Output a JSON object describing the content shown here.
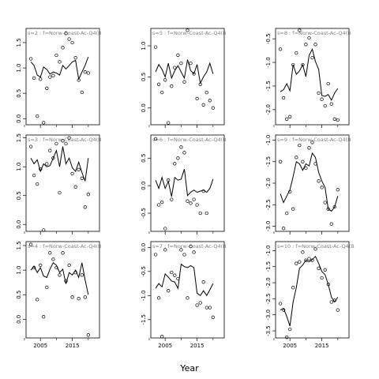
{
  "figure": {
    "x_axis_title": "Year",
    "colors": {
      "line": "#000000",
      "points": "#000000",
      "strip_text": "#808080",
      "background": "#ffffff"
    }
  },
  "chart_data": [
    {
      "type": "scatter",
      "row": 0,
      "col": 0,
      "strip_label": "s=2 : f=Norw-Coast-Ac-Q4(B",
      "xlim": [
        2000.5,
        2023.5
      ],
      "ylim": [
        -0.12,
        1.78
      ],
      "yticks": [
        0.0,
        0.5,
        1.0,
        1.5
      ],
      "ytick_labels": [
        "0.0",
        "0.5",
        "1.0",
        "1.5"
      ],
      "points": {
        "x": [
          2002,
          2003,
          2004,
          2005,
          2006,
          2007,
          2008,
          2009,
          2010,
          2011,
          2012,
          2013,
          2014,
          2015,
          2016,
          2017,
          2018,
          2019,
          2020,
          2021,
          2022
        ],
        "y": [
          1.18,
          0.8,
          0.05,
          0.78,
          -0.08,
          0.6,
          0.82,
          0.85,
          1.25,
          1.12,
          1.4,
          1.68,
          1.57,
          1.5,
          1.2,
          0.76,
          0.52,
          0.92,
          0.9,
          null,
          null
        ]
      },
      "fit": {
        "x": [
          2002,
          2003,
          2004,
          2005,
          2006,
          2007,
          2008,
          2009,
          2010,
          2011,
          2012,
          2013,
          2014,
          2015,
          2016,
          2017,
          2018,
          2019,
          2020
        ],
        "y": [
          1.12,
          1.05,
          0.86,
          0.82,
          1.02,
          0.97,
          0.88,
          0.92,
          0.9,
          0.86,
          1.05,
          0.98,
          1.05,
          1.12,
          1.15,
          0.78,
          0.92,
          1.05,
          1.22
        ]
      }
    },
    {
      "type": "scatter",
      "row": 0,
      "col": 1,
      "strip_label": "s=5 : f=Norw-Coast-Ac-Q4(B",
      "xlim": [
        2000.5,
        2023.5
      ],
      "ylim": [
        -0.27,
        1.28
      ],
      "yticks": [
        0.0,
        0.5,
        1.0
      ],
      "ytick_labels": [
        "0.0",
        "0.5",
        "1.0"
      ],
      "points": {
        "x": [
          2002,
          2003,
          2004,
          2005,
          2006,
          2007,
          2008,
          2009,
          2010,
          2011,
          2012,
          2013,
          2014,
          2015,
          2016,
          2017,
          2018,
          2019,
          2020
        ],
        "y": [
          0.98,
          0.38,
          0.25,
          0.45,
          -0.24,
          0.35,
          0.65,
          0.85,
          0.72,
          0.42,
          1.25,
          0.72,
          0.55,
          0.15,
          0.38,
          0.05,
          0.25,
          0.12,
          0.0
        ]
      },
      "fit": {
        "x": [
          2002,
          2003,
          2004,
          2005,
          2006,
          2007,
          2008,
          2009,
          2010,
          2011,
          2012,
          2013,
          2014,
          2015,
          2016,
          2017,
          2018,
          2019,
          2020
        ],
        "y": [
          0.58,
          0.7,
          0.62,
          0.5,
          0.72,
          0.48,
          0.6,
          0.68,
          0.58,
          0.48,
          0.78,
          0.6,
          0.55,
          0.7,
          0.4,
          0.5,
          0.58,
          0.72,
          0.55
        ]
      }
    },
    {
      "type": "scatter",
      "row": 0,
      "col": 2,
      "strip_label": "s=8 : f=Norw-Coast-Ac-Q4(B",
      "xlim": [
        2000.5,
        2023.5
      ],
      "ylim": [
        -2.32,
        -0.28
      ],
      "yticks": [
        -2.0,
        -1.5,
        -1.0,
        -0.5
      ],
      "ytick_labels": [
        "-2.0",
        "-1.5",
        "-1.0",
        "-0.5"
      ],
      "points": {
        "x": [
          2002,
          2003,
          2004,
          2005,
          2006,
          2007,
          2008,
          2009,
          2010,
          2011,
          2012,
          2013,
          2014,
          2015,
          2016,
          2017,
          2018,
          2019,
          2020
        ],
        "y": [
          -0.72,
          -1.75,
          -2.2,
          -2.15,
          -1.05,
          -0.8,
          -0.32,
          -1.05,
          -0.62,
          -0.48,
          -0.9,
          -0.62,
          -1.65,
          -1.78,
          -1.92,
          -1.45,
          -1.88,
          -2.2,
          -2.22
        ]
      },
      "fit": {
        "x": [
          2002,
          2003,
          2004,
          2005,
          2006,
          2007,
          2008,
          2009,
          2010,
          2011,
          2012,
          2013,
          2014,
          2015,
          2016,
          2017,
          2018,
          2019,
          2020
        ],
        "y": [
          -1.62,
          -1.58,
          -1.45,
          -1.6,
          -1.05,
          -1.25,
          -1.18,
          -1.05,
          -1.3,
          -0.85,
          -0.72,
          -0.98,
          -1.15,
          -1.7,
          -1.72,
          -1.68,
          -1.8,
          -1.65,
          -1.55
        ]
      }
    },
    {
      "type": "scatter",
      "row": 1,
      "col": 0,
      "strip_label": "s=3 : f=Norw-Coast-Ac-Q4(B",
      "xlim": [
        2000.5,
        2023.5
      ],
      "ylim": [
        -0.12,
        1.55
      ],
      "yticks": [
        0.0,
        0.5,
        1.0,
        1.5
      ],
      "ytick_labels": [
        "0.0",
        "0.5",
        "1.0",
        "1.5"
      ],
      "points": {
        "x": [
          2002,
          2003,
          2004,
          2005,
          2006,
          2007,
          2008,
          2009,
          2010,
          2011,
          2012,
          2013,
          2014,
          2015,
          2016,
          2017,
          2018,
          2019,
          2020
        ],
        "y": [
          1.35,
          0.85,
          0.7,
          0.96,
          -0.1,
          1.05,
          1.28,
          1.15,
          1.4,
          0.55,
          1.45,
          1.4,
          1.5,
          0.88,
          0.65,
          0.95,
          0.8,
          0.3,
          0.52
        ]
      },
      "fit": {
        "x": [
          2002,
          2003,
          2004,
          2005,
          2006,
          2007,
          2008,
          2009,
          2010,
          2011,
          2012,
          2013,
          2014,
          2015,
          2016,
          2017,
          2018,
          2019,
          2020
        ],
        "y": [
          1.15,
          1.05,
          1.12,
          0.92,
          1.05,
          1.0,
          1.02,
          1.15,
          1.28,
          1.0,
          1.35,
          1.05,
          1.15,
          0.98,
          0.92,
          1.08,
          0.9,
          0.75,
          1.15
        ]
      }
    },
    {
      "type": "scatter",
      "row": 1,
      "col": 1,
      "strip_label": "s=6 : f=Norw-Coast-Ac-Q4(B",
      "xlim": [
        2000.5,
        2023.5
      ],
      "ylim": [
        -0.83,
        0.92
      ],
      "yticks": [
        -0.5,
        0.0,
        0.5
      ],
      "ytick_labels": [
        "-0.5",
        "0.0",
        "0.5"
      ],
      "points": {
        "x": [
          2002,
          2003,
          2004,
          2005,
          2006,
          2007,
          2008,
          2009,
          2010,
          2011,
          2012,
          2013,
          2014,
          2015,
          2016,
          2017,
          2018,
          2019,
          2020
        ],
        "y": [
          0.85,
          -0.35,
          -0.3,
          -0.78,
          0.1,
          -0.25,
          0.4,
          0.5,
          0.7,
          0.6,
          -0.28,
          -0.32,
          -0.25,
          -0.35,
          -0.5,
          -0.1,
          -0.5,
          null,
          null
        ]
      },
      "fit": {
        "x": [
          2002,
          2003,
          2004,
          2005,
          2006,
          2007,
          2008,
          2009,
          2010,
          2011,
          2012,
          2013,
          2014,
          2015,
          2016,
          2017,
          2018,
          2019,
          2020
        ],
        "y": [
          0.1,
          -0.05,
          0.15,
          -0.05,
          0.08,
          -0.2,
          0.15,
          0.1,
          0.12,
          0.3,
          -0.18,
          -0.12,
          -0.08,
          -0.12,
          -0.1,
          -0.08,
          -0.12,
          -0.05,
          0.12
        ]
      }
    },
    {
      "type": "scatter",
      "row": 1,
      "col": 2,
      "strip_label": "s=9 : f=Norw-Coast-Ac-Q4(B",
      "xlim": [
        2000.5,
        2023.5
      ],
      "ylim": [
        -3.12,
        -0.88
      ],
      "yticks": [
        -3.0,
        -2.5,
        -2.0,
        -1.5,
        -1.0
      ],
      "ytick_labels": [
        "-3.0",
        "-2.5",
        "-2.0",
        "-1.5",
        "-1.0"
      ],
      "points": {
        "x": [
          2002,
          2003,
          2004,
          2005,
          2006,
          2007,
          2008,
          2009,
          2010,
          2011,
          2012,
          2013,
          2014,
          2015,
          2016,
          2017,
          2018,
          2019,
          2020
        ],
        "y": [
          -1.5,
          -3.05,
          -2.7,
          -2.2,
          -2.6,
          -1.4,
          -1.12,
          -1.5,
          -1.65,
          -1.18,
          -1.05,
          -1.55,
          -1.95,
          -2.1,
          -2.45,
          -2.6,
          -2.95,
          -2.55,
          -2.15
        ]
      },
      "fit": {
        "x": [
          2002,
          2003,
          2004,
          2005,
          2006,
          2007,
          2008,
          2009,
          2010,
          2011,
          2012,
          2013,
          2014,
          2015,
          2016,
          2017,
          2018,
          2019,
          2020
        ],
        "y": [
          -2.25,
          -2.45,
          -2.3,
          -2.15,
          -1.85,
          -1.5,
          -1.55,
          -1.7,
          -1.55,
          -1.6,
          -1.3,
          -1.4,
          -1.75,
          -1.95,
          -2.1,
          -2.6,
          -2.65,
          -2.55,
          -2.3
        ]
      }
    },
    {
      "type": "scatter",
      "row": 2,
      "col": 0,
      "strip_label": "s=4 : f=Norw-Coast-Ac-Q4(B",
      "xlim": [
        2000.5,
        2023.5
      ],
      "ylim": [
        -0.38,
        1.58
      ],
      "yticks": [
        0.0,
        0.5,
        1.0,
        1.5
      ],
      "ytick_labels": [
        "0.0",
        "0.5",
        "1.0",
        "1.5"
      ],
      "points": {
        "x": [
          2002,
          2003,
          2004,
          2005,
          2006,
          2007,
          2008,
          2009,
          2010,
          2011,
          2012,
          2013,
          2014,
          2015,
          2016,
          2017,
          2018,
          2019,
          2020
        ],
        "y": [
          1.52,
          1.05,
          0.4,
          1.1,
          0.05,
          0.65,
          1.35,
          1.22,
          1.05,
          0.9,
          1.35,
          0.78,
          1.1,
          0.45,
          0.95,
          0.42,
          0.9,
          0.45,
          -0.32
        ]
      },
      "fit": {
        "x": [
          2002,
          2003,
          2004,
          2005,
          2006,
          2007,
          2008,
          2009,
          2010,
          2011,
          2012,
          2013,
          2014,
          2015,
          2016,
          2017,
          2018,
          2019,
          2020
        ],
        "y": [
          1.0,
          1.08,
          0.95,
          1.05,
          0.88,
          0.85,
          1.02,
          1.15,
          1.1,
          0.95,
          1.02,
          0.72,
          0.95,
          0.9,
          1.0,
          0.85,
          1.15,
          0.8,
          0.5
        ]
      }
    },
    {
      "type": "scatter",
      "row": 2,
      "col": 1,
      "strip_label": "s=7 : f=Norw-Coast-Ac-Q4(B",
      "xlim": [
        2000.5,
        2023.5
      ],
      "ylim": [
        -1.88,
        0.12
      ],
      "yticks": [
        -1.5,
        -1.0,
        -0.5,
        0.0
      ],
      "ytick_labels": [
        "-1.5",
        "-1.0",
        "-0.5",
        "0.0"
      ],
      "points": {
        "x": [
          2002,
          2003,
          2004,
          2005,
          2006,
          2007,
          2008,
          2009,
          2010,
          2011,
          2012,
          2013,
          2014,
          2015,
          2016,
          2017,
          2018,
          2019,
          2020
        ],
        "y": [
          -0.15,
          -1.05,
          -1.85,
          -0.05,
          -0.9,
          -0.52,
          -0.58,
          -0.65,
          -0.05,
          -0.15,
          -1.05,
          0.02,
          -0.1,
          -1.2,
          -1.15,
          -0.72,
          -1.25,
          -1.25,
          -1.45
        ]
      },
      "fit": {
        "x": [
          2002,
          2003,
          2004,
          2005,
          2006,
          2007,
          2008,
          2009,
          2010,
          2011,
          2012,
          2013,
          2014,
          2015,
          2016,
          2017,
          2018,
          2019,
          2020
        ],
        "y": [
          -0.85,
          -0.75,
          -0.82,
          -0.55,
          -0.62,
          -0.7,
          -0.72,
          -0.85,
          -0.35,
          -0.4,
          -0.42,
          -0.38,
          -0.42,
          -0.95,
          -1.0,
          -0.9,
          -1.0,
          -0.88,
          -0.75
        ]
      }
    },
    {
      "type": "scatter",
      "row": 2,
      "col": 2,
      "strip_label": "s=10 : f=Norw-Coast-Ac-Q4(B",
      "xlim": [
        2000.5,
        2023.5
      ],
      "ylim": [
        -3.72,
        -0.72
      ],
      "yticks": [
        -3.5,
        -3.0,
        -2.5,
        -2.0,
        -1.5,
        -1.0
      ],
      "ytick_labels": [
        "-3.5",
        "-3.0",
        "-2.5",
        "-2.0",
        "-1.5",
        "-1.0"
      ],
      "points": {
        "x": [
          2002,
          2003,
          2004,
          2005,
          2006,
          2007,
          2008,
          2009,
          2010,
          2011,
          2012,
          2013,
          2014,
          2015,
          2016,
          2017,
          2018,
          2019,
          2020
        ],
        "y": [
          -2.65,
          -2.85,
          -3.7,
          -3.45,
          -2.15,
          -1.4,
          -1.35,
          -1.05,
          -1.3,
          -1.25,
          -1.3,
          -0.95,
          -1.55,
          -1.85,
          -1.6,
          -2.05,
          -2.6,
          -2.55,
          -2.85
        ]
      },
      "fit": {
        "x": [
          2002,
          2003,
          2004,
          2005,
          2006,
          2007,
          2008,
          2009,
          2010,
          2011,
          2012,
          2013,
          2014,
          2015,
          2016,
          2017,
          2018,
          2019,
          2020
        ],
        "y": [
          -2.85,
          -2.8,
          -3.05,
          -3.35,
          -2.6,
          -2.15,
          -1.55,
          -1.45,
          -1.3,
          -1.35,
          -1.28,
          -1.18,
          -1.4,
          -1.65,
          -1.75,
          -2.05,
          -2.45,
          -2.6,
          -2.45
        ]
      }
    }
  ],
  "x_axis": {
    "ticks": [
      2005,
      2015
    ],
    "tick_labels": [
      "2005",
      "2015"
    ],
    "minor_ticks": [
      2000,
      2010,
      2020
    ]
  }
}
